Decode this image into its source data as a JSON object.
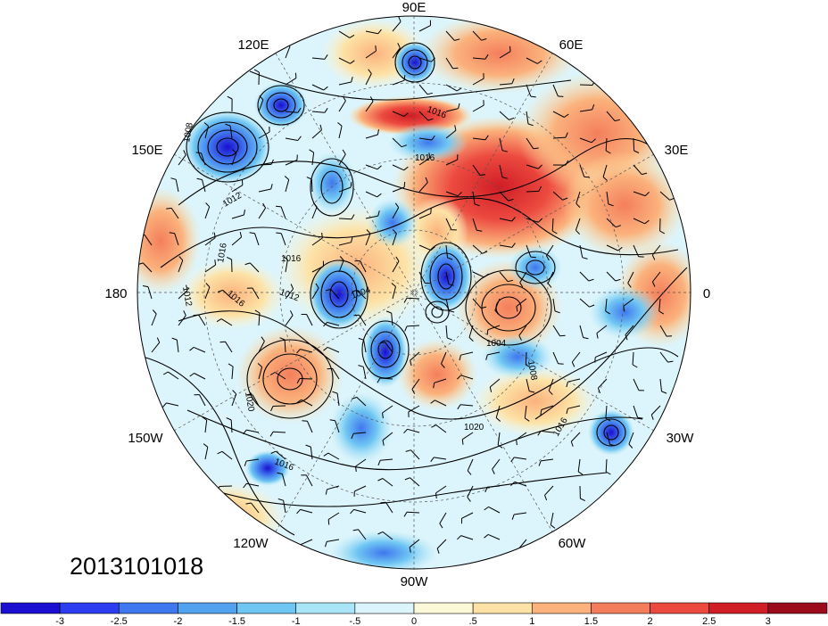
{
  "map": {
    "projection": "polar-stereographic-north",
    "timestamp": "2013101018",
    "longitude_labels": [
      "90E",
      "60E",
      "30E",
      "0",
      "30W",
      "60W",
      "90W",
      "120W",
      "150W",
      "180",
      "150E",
      "120E"
    ],
    "isobar_labels": [
      "1008",
      "1012",
      "1016",
      "1016",
      "1016",
      "1012",
      "1016",
      "1012",
      "1004",
      "1004",
      "1008",
      "1020",
      "1016",
      "1020",
      "1016",
      "1016"
    ],
    "colorbar": {
      "colors": [
        "#1a0fd0",
        "#2c3cf0",
        "#3f77ee",
        "#52a2ef",
        "#6fc6f3",
        "#a8e6f7",
        "#dcf4fb",
        "#fdf8d8",
        "#fde2a6",
        "#fbb27c",
        "#f47e5c",
        "#ec4a3f",
        "#d01d26",
        "#9b0b1c"
      ],
      "labels": [
        "-3",
        "-2.5",
        "-2",
        "-1.5",
        "-1",
        "-.5",
        "0",
        ".5",
        "1",
        "1.5",
        "2",
        "2.5",
        "3"
      ]
    }
  }
}
